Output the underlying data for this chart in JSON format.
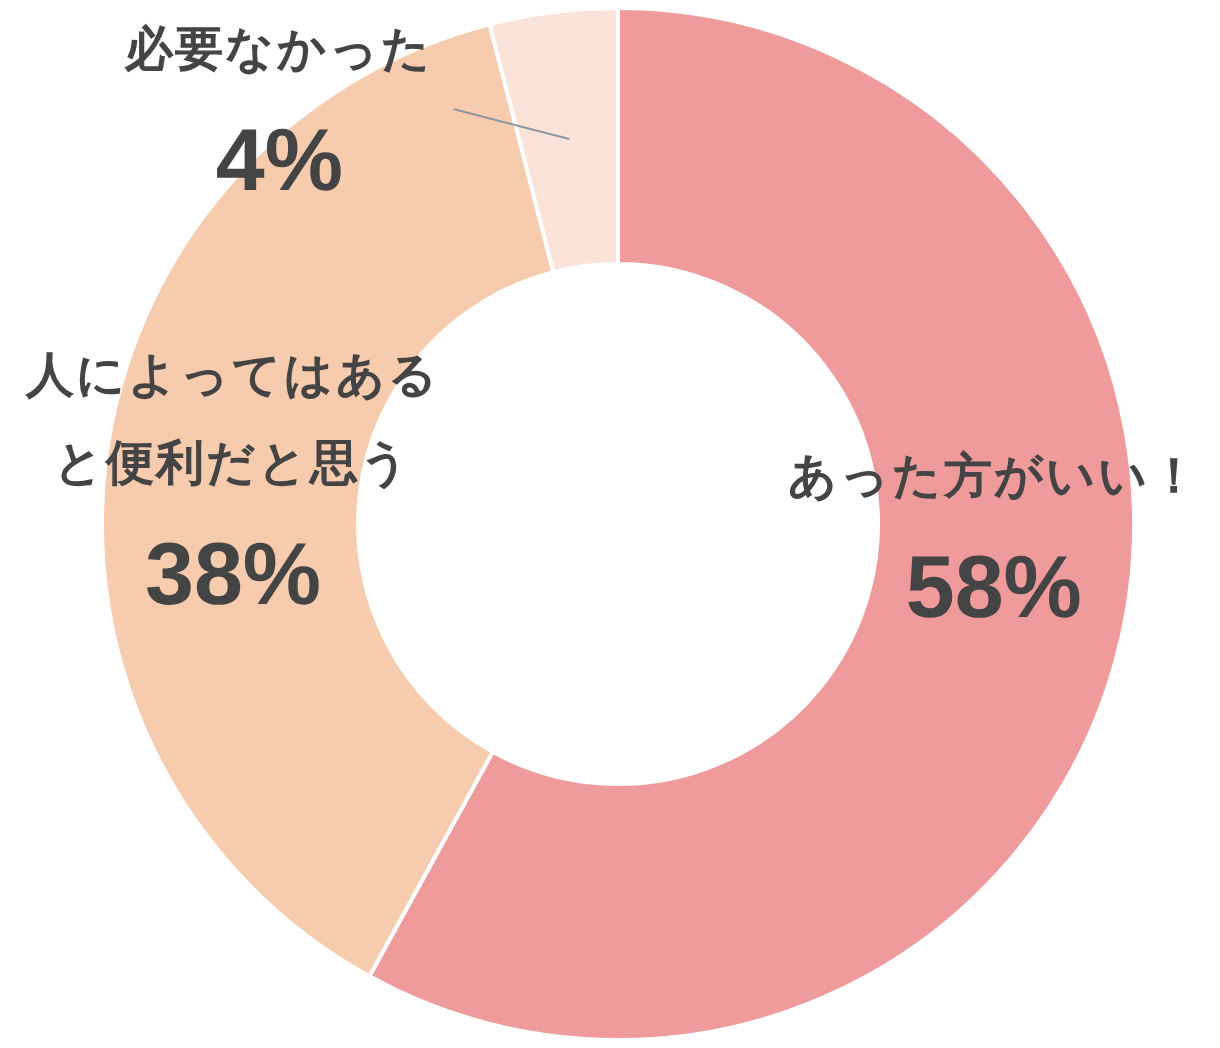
{
  "chart_data": {
    "type": "donut",
    "categories": [
      "あった方がいい！",
      "人によってはあると便利だと思う",
      "必要なかった"
    ],
    "values": [
      58,
      38,
      4
    ],
    "colors": [
      "#ef9a9b",
      "#f7cbae",
      "#fae3d8"
    ],
    "value_labels": [
      "58%",
      "38%",
      "4%"
    ]
  }
}
